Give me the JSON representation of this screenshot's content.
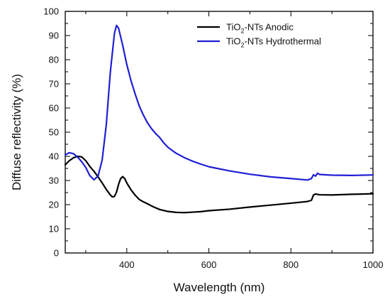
{
  "chart_data": {
    "type": "line",
    "title": "",
    "xlabel": "Wavelength (nm)",
    "ylabel": "Diffuse reflectivity (%)",
    "xlim": [
      250,
      1000
    ],
    "ylim": [
      0,
      100
    ],
    "x_ticks": [
      400,
      600,
      800,
      1000
    ],
    "y_ticks": [
      0,
      10,
      20,
      30,
      40,
      50,
      60,
      70,
      80,
      90,
      100
    ],
    "legend_position": "top-right",
    "grid": false,
    "series": [
      {
        "name_parts": [
          "TiO",
          "2",
          "-NTs Anodic"
        ],
        "color": "#000000",
        "points": [
          [
            250,
            36.5
          ],
          [
            260,
            38.2
          ],
          [
            270,
            39.4
          ],
          [
            280,
            40.0
          ],
          [
            290,
            39.8
          ],
          [
            300,
            38.2
          ],
          [
            310,
            35.8
          ],
          [
            320,
            33.8
          ],
          [
            330,
            31.5
          ],
          [
            340,
            29.0
          ],
          [
            350,
            26.3
          ],
          [
            360,
            24.0
          ],
          [
            365,
            23.2
          ],
          [
            370,
            23.4
          ],
          [
            375,
            25.2
          ],
          [
            380,
            28.4
          ],
          [
            385,
            30.8
          ],
          [
            390,
            31.6
          ],
          [
            395,
            30.8
          ],
          [
            400,
            29.0
          ],
          [
            410,
            26.2
          ],
          [
            420,
            24.0
          ],
          [
            430,
            22.2
          ],
          [
            440,
            21.2
          ],
          [
            450,
            20.4
          ],
          [
            460,
            19.5
          ],
          [
            470,
            18.7
          ],
          [
            480,
            18.0
          ],
          [
            490,
            17.6
          ],
          [
            500,
            17.2
          ],
          [
            520,
            16.8
          ],
          [
            540,
            16.7
          ],
          [
            560,
            16.9
          ],
          [
            580,
            17.1
          ],
          [
            600,
            17.5
          ],
          [
            650,
            18.1
          ],
          [
            700,
            19.0
          ],
          [
            750,
            19.8
          ],
          [
            800,
            20.6
          ],
          [
            840,
            21.3
          ],
          [
            850,
            21.8
          ],
          [
            855,
            24.0
          ],
          [
            860,
            24.4
          ],
          [
            870,
            24.1
          ],
          [
            900,
            24.0
          ],
          [
            950,
            24.3
          ],
          [
            1000,
            24.5
          ]
        ]
      },
      {
        "name_parts": [
          "TiO",
          "2",
          "-NTs Hydrothermal"
        ],
        "color": "#1f1fd6",
        "points": [
          [
            250,
            40.6
          ],
          [
            260,
            41.5
          ],
          [
            270,
            41.1
          ],
          [
            280,
            39.7
          ],
          [
            290,
            37.8
          ],
          [
            300,
            35.4
          ],
          [
            310,
            32.0
          ],
          [
            320,
            30.3
          ],
          [
            330,
            31.8
          ],
          [
            340,
            38.5
          ],
          [
            350,
            53.0
          ],
          [
            360,
            75.0
          ],
          [
            370,
            91.0
          ],
          [
            375,
            94.2
          ],
          [
            380,
            93.0
          ],
          [
            390,
            86.0
          ],
          [
            400,
            78.0
          ],
          [
            410,
            71.5
          ],
          [
            420,
            66.0
          ],
          [
            430,
            61.0
          ],
          [
            440,
            57.2
          ],
          [
            450,
            54.0
          ],
          [
            460,
            51.5
          ],
          [
            470,
            49.5
          ],
          [
            480,
            47.8
          ],
          [
            490,
            45.6
          ],
          [
            500,
            43.8
          ],
          [
            510,
            42.5
          ],
          [
            520,
            41.3
          ],
          [
            540,
            39.5
          ],
          [
            560,
            38.0
          ],
          [
            580,
            36.8
          ],
          [
            600,
            35.7
          ],
          [
            650,
            34.0
          ],
          [
            700,
            32.6
          ],
          [
            750,
            31.5
          ],
          [
            800,
            30.8
          ],
          [
            840,
            30.2
          ],
          [
            850,
            30.8
          ],
          [
            855,
            32.4
          ],
          [
            860,
            31.8
          ],
          [
            865,
            33.0
          ],
          [
            870,
            32.5
          ],
          [
            900,
            32.2
          ],
          [
            950,
            32.1
          ],
          [
            1000,
            32.3
          ]
        ]
      }
    ]
  }
}
